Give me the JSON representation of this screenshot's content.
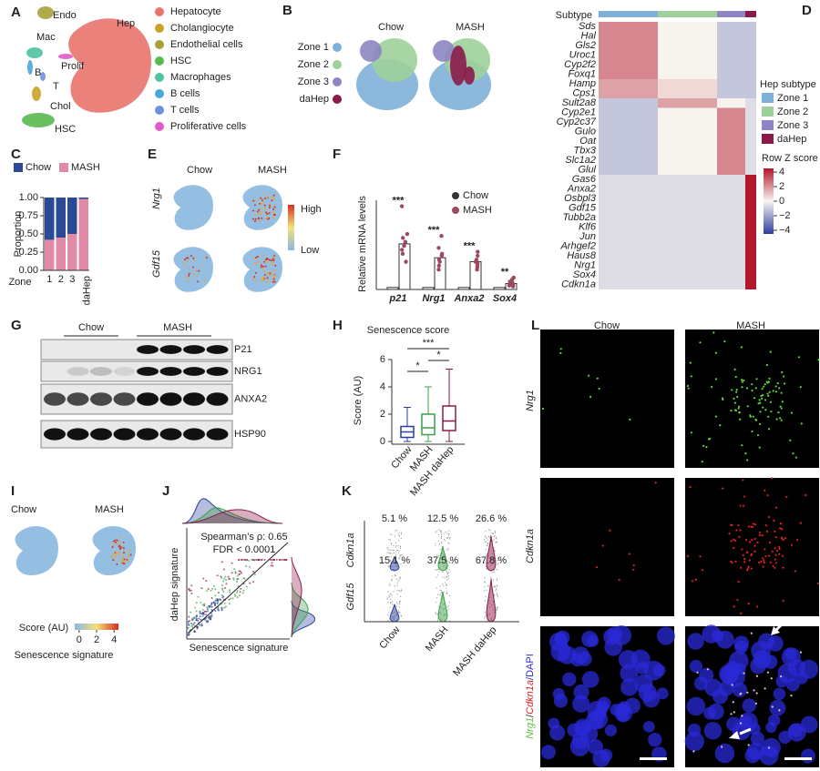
{
  "figure": {
    "A": {
      "label": "A",
      "clusters": [
        "Endo",
        "Hep",
        "Mac",
        "Prolif",
        "B",
        "T",
        "Chol",
        "HSC"
      ],
      "legend": [
        {
          "name": "Hepatocyte",
          "color": "#e8736b"
        },
        {
          "name": "Cholangiocyte",
          "color": "#c9a227"
        },
        {
          "name": "Endothelial cells",
          "color": "#a6a23a"
        },
        {
          "name": "HSC",
          "color": "#5ab94f"
        },
        {
          "name": "Macrophages",
          "color": "#4fc2a0"
        },
        {
          "name": "B cells",
          "color": "#4aa8d8"
        },
        {
          "name": "T cells",
          "color": "#6f8fe0"
        },
        {
          "name": "Proliferative cells",
          "color": "#e05bc8"
        }
      ]
    },
    "B": {
      "label": "B",
      "conditions": [
        "Chow",
        "MASH"
      ],
      "legend": [
        {
          "name": "Zone 1",
          "color": "#7fb0d8"
        },
        {
          "name": "Zone 2",
          "color": "#9dd09a"
        },
        {
          "name": "Zone 3",
          "color": "#8e86c4"
        },
        {
          "name": "daHep",
          "color": "#8b1a4a"
        }
      ]
    },
    "C": {
      "label": "C",
      "categories": [
        "1",
        "2",
        "3",
        "daHep"
      ],
      "x_label": "Zone",
      "y_label": "Proportion",
      "series": [
        {
          "name": "MASH",
          "color": "#e08aa6",
          "values": [
            0.42,
            0.45,
            0.5,
            0.98
          ]
        },
        {
          "name": "Chow",
          "color": "#2b4a96",
          "values": [
            0.58,
            0.55,
            0.5,
            0.02
          ]
        }
      ],
      "ylim": [
        0,
        1
      ],
      "yticks": [
        {
          "value": 0,
          "label": "0.00"
        },
        {
          "value": 0.25,
          "label": "0.25"
        },
        {
          "value": 0.5,
          "label": "0.50"
        },
        {
          "value": 0.75,
          "label": "0.75"
        },
        {
          "value": 1,
          "label": "1.00"
        }
      ]
    },
    "D": {
      "label": "D",
      "subtype_title": "Subtype",
      "genes": [
        "Sds",
        "Hal",
        "Gls2",
        "Uroc1",
        "Cyp2f2",
        "Foxq1",
        "Hamp",
        "Cps1",
        "Sult2a8",
        "Cyp2e1",
        "Cyp2c37",
        "Gulo",
        "Oat",
        "Tbx3",
        "Slc1a2",
        "Glul",
        "Gas6",
        "Anxa2",
        "Osbpl3",
        "Gdf15",
        "Tubb2a",
        "Klf6",
        "Jun",
        "Arhgef2",
        "Haus8",
        "Nrg1",
        "Sox4",
        "Cdkn1a"
      ],
      "z_scores": [
        [
          2,
          0,
          -1,
          -1
        ],
        [
          2,
          0,
          -1,
          -1
        ],
        [
          2,
          0,
          -1,
          -1
        ],
        [
          2,
          0,
          -1,
          -1
        ],
        [
          2,
          0,
          -1,
          -1
        ],
        [
          2,
          0,
          -1,
          -1
        ],
        [
          1.5,
          0.5,
          -1,
          -1
        ],
        [
          1.5,
          0.5,
          -1,
          -1
        ],
        [
          -1,
          1.5,
          0,
          -0.5
        ],
        [
          -1,
          0,
          2,
          -0.5
        ],
        [
          -1,
          0,
          2,
          -0.5
        ],
        [
          -1,
          0,
          2,
          -0.5
        ],
        [
          -1,
          0,
          2,
          -0.5
        ],
        [
          -1,
          0,
          2,
          -0.5
        ],
        [
          -1,
          0,
          2,
          -0.5
        ],
        [
          -1,
          0,
          2,
          -0.5
        ],
        [
          -0.5,
          -0.5,
          -0.5,
          4
        ],
        [
          -0.5,
          -0.5,
          -0.5,
          4
        ],
        [
          -0.5,
          -0.5,
          -0.5,
          4
        ],
        [
          -0.5,
          -0.5,
          -0.5,
          4
        ],
        [
          -0.5,
          -0.5,
          -0.5,
          4
        ],
        [
          -0.5,
          -0.5,
          -0.5,
          4
        ],
        [
          -0.5,
          -0.5,
          -0.5,
          4
        ],
        [
          -0.5,
          -0.5,
          -0.5,
          4
        ],
        [
          -0.5,
          -0.5,
          -0.5,
          4
        ],
        [
          -0.5,
          -0.5,
          -0.5,
          4
        ],
        [
          -0.5,
          -0.5,
          -0.5,
          4
        ],
        [
          -0.5,
          -0.5,
          -0.5,
          4
        ]
      ],
      "legend_title": "Hep subtype",
      "legend": [
        {
          "name": "Zone 1",
          "color": "#7fb0d8"
        },
        {
          "name": "Zone 2",
          "color": "#9dd09a"
        },
        {
          "name": "Zone 3",
          "color": "#8e86c4"
        },
        {
          "name": "daHep",
          "color": "#8b1a4a"
        }
      ],
      "colorbar_title": "Row Z score",
      "colorbar_lim": [
        -4.5,
        4.5
      ],
      "colorbar_ticks": [
        4,
        2,
        0,
        {
          "value": -2,
          "label": "−2"
        },
        {
          "value": -4,
          "label": "−4"
        }
      ]
    },
    "E": {
      "label": "E",
      "conditions": [
        "Chow",
        "MASH"
      ],
      "genes": [
        "Nrg1",
        "Gdf15"
      ],
      "high": "High",
      "low": "Low"
    },
    "F": {
      "label": "F",
      "y_label": "Relative mRNA levels",
      "categories": [
        "p21",
        "Nrg1",
        "Anxa2",
        "Sox4"
      ],
      "ylim": [
        0,
        45
      ],
      "series": [
        {
          "name": "Chow",
          "color": "#333333",
          "values": [
            1,
            1,
            1,
            1
          ]
        },
        {
          "name": "MASH",
          "color": "#9c4a5e",
          "values": [
            23,
            16,
            14,
            3
          ],
          "points": [
            [
              42,
              28,
              26,
              24,
              22,
              20,
              18,
              14
            ],
            [
              27,
              21,
              18,
              17,
              15,
              14,
              12,
              10
            ],
            [
              19,
              17,
              15,
              14,
              13,
              12,
              11,
              10
            ],
            [
              6,
              5,
              4,
              3.5,
              3,
              2.5,
              2,
              1.5
            ]
          ]
        }
      ],
      "significance": [
        "***",
        "***",
        "***",
        "**"
      ]
    },
    "G": {
      "label": "G",
      "groups": [
        "Chow",
        "MASH"
      ],
      "proteins": [
        "P21",
        "NRG1",
        "ANXA2",
        "HSP90"
      ]
    },
    "H": {
      "label": "H",
      "title": "Senescence score",
      "y_label": "Score (AU)",
      "categories": [
        "Chow",
        "MASH",
        "MASH daHep"
      ],
      "colors": [
        "#2b3f9e",
        "#3aa24a",
        "#8b1a4a"
      ],
      "ylim": [
        0,
        6
      ],
      "yticks": [
        0,
        2,
        4,
        6
      ],
      "boxes": [
        {
          "low": 0,
          "q1": 0.3,
          "median": 0.7,
          "q3": 1.1,
          "high": 2.5
        },
        {
          "low": 0,
          "q1": 0.5,
          "median": 1.0,
          "q3": 2.0,
          "high": 4
        },
        {
          "low": 0,
          "q1": 0.8,
          "median": 1.5,
          "q3": 2.6,
          "high": 5.3
        }
      ],
      "significance": [
        "***",
        "*",
        "*"
      ]
    },
    "I": {
      "label": "I",
      "conditions": [
        "Chow",
        "MASH"
      ],
      "colorbar_title": "Score (AU)",
      "colorbar_lim": [
        -0.5,
        4.5
      ],
      "colorbar_ticks": [
        0,
        2,
        4
      ],
      "caption": "Senescence signature"
    },
    "J": {
      "label": "J",
      "stat": "Spearman’s ρ: 0.65",
      "fdr": "FDR < 0.0001",
      "y_label": "daHep signature",
      "x_label": "Senescence signature"
    },
    "K": {
      "label": "K",
      "genes": [
        "Cdkn1a",
        "Gdf15"
      ],
      "categories": [
        "Chow",
        "MASH",
        "MASH daHep"
      ],
      "percentages": [
        [
          "5.1 %",
          "12.5 %",
          "26.6 %"
        ],
        [
          "15.1 %",
          "37.5 %",
          "67.8 %"
        ]
      ]
    },
    "L": {
      "label": "L",
      "conditions": [
        "Chow",
        "MASH"
      ],
      "rows": [
        "Nrg1",
        "Cdkn1a"
      ],
      "merge": [
        "Nrg1",
        "/",
        "Cdkn1a",
        "/DAPI"
      ]
    }
  }
}
